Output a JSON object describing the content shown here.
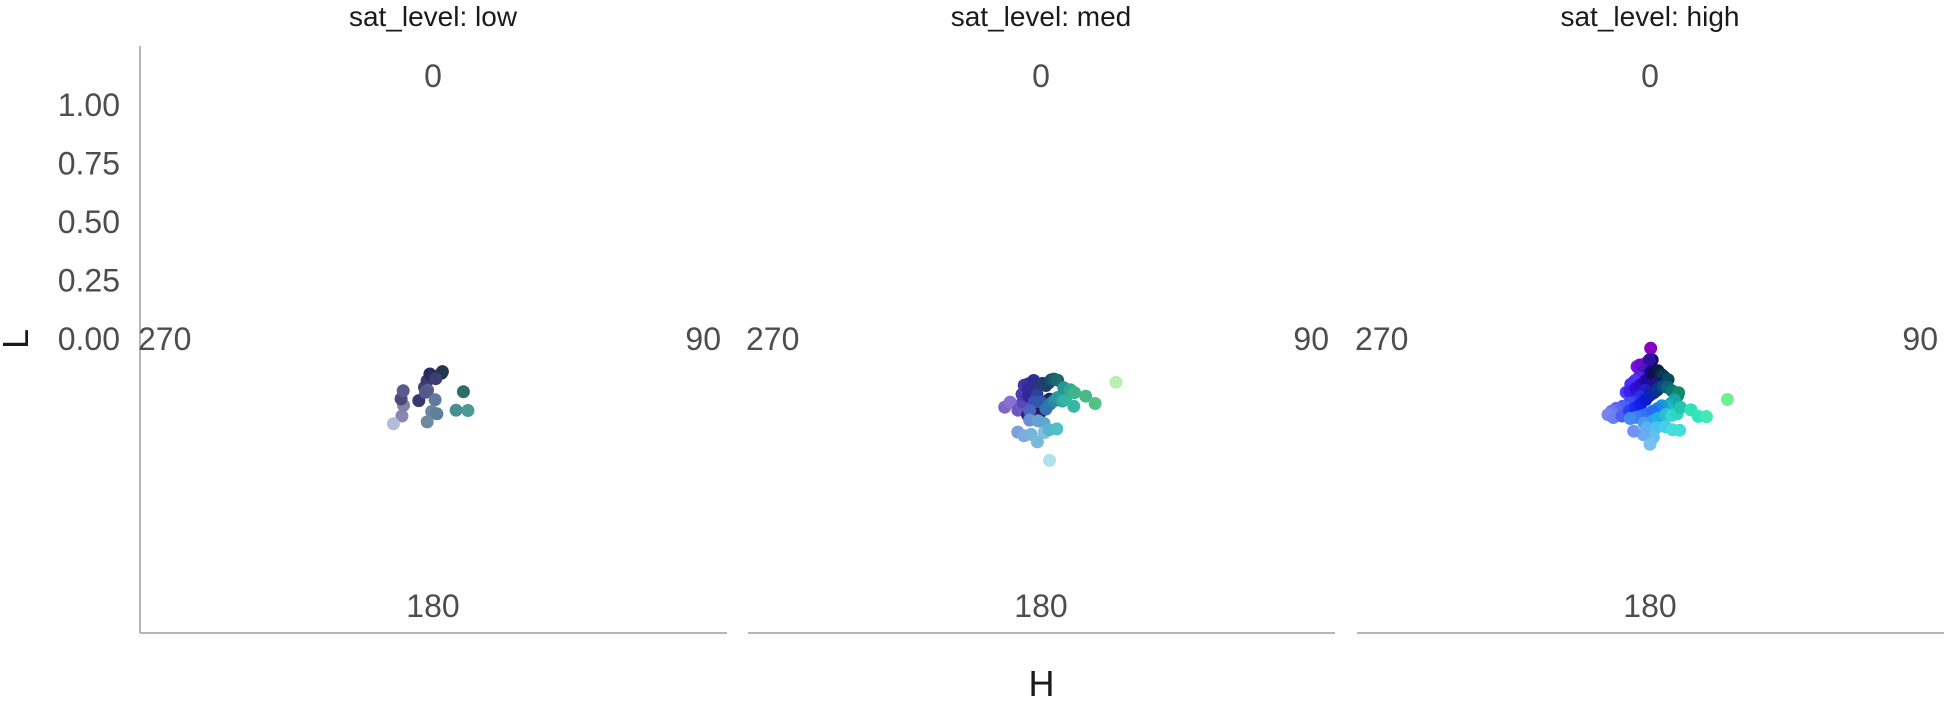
{
  "chart_data": {
    "type": "scatter",
    "coord": "polar",
    "facet_var": "sat_level",
    "x": {
      "label": "H",
      "range": [
        0,
        360
      ],
      "ticks": [
        0,
        90,
        180,
        270
      ]
    },
    "y": {
      "label": "L",
      "range": [
        0,
        1.25
      ],
      "ticks": [
        "0.00",
        "0.25",
        "0.50",
        "0.75",
        "1.00"
      ]
    },
    "grid": false,
    "panels": [
      {
        "label": "sat_level: low",
        "points": [
          {
            "h": 202,
            "l": 0.355,
            "color": "#8a86b4"
          },
          {
            "h": 204,
            "l": 0.31,
            "color": "#8480a8"
          },
          {
            "h": 208,
            "l": 0.29,
            "color": "#4a4a7a"
          },
          {
            "h": 210,
            "l": 0.255,
            "color": "#5a5a8c"
          },
          {
            "h": 193,
            "l": 0.27,
            "color": "#38366a"
          },
          {
            "h": 190,
            "l": 0.21,
            "color": "#44407a"
          },
          {
            "h": 188,
            "l": 0.18,
            "color": "#3a3a6e"
          },
          {
            "h": 185,
            "l": 0.15,
            "color": "#2c2c5c"
          },
          {
            "h": 166,
            "l": 0.15,
            "color": "#1e2a48"
          },
          {
            "h": 164,
            "l": 0.145,
            "color": "#26344e"
          },
          {
            "h": 176,
            "l": 0.17,
            "color": "#3c3e70"
          },
          {
            "h": 186,
            "l": 0.22,
            "color": "#5c6090"
          },
          {
            "h": 188,
            "l": 0.23,
            "color": "#56588a"
          },
          {
            "h": 178,
            "l": 0.26,
            "color": "#607a9c"
          },
          {
            "h": 181,
            "l": 0.31,
            "color": "#6a84a6"
          },
          {
            "h": 177,
            "l": 0.32,
            "color": "#5e7e9a"
          },
          {
            "h": 184,
            "l": 0.355,
            "color": "#6c8aa0"
          },
          {
            "h": 162,
            "l": 0.32,
            "color": "#4a8f90"
          },
          {
            "h": 154,
            "l": 0.34,
            "color": "#4a9a90"
          },
          {
            "h": 150,
            "l": 0.26,
            "color": "#2e6e68"
          },
          {
            "h": 205,
            "l": 0.4,
            "color": "#b4bcd8"
          }
        ]
      },
      {
        "label": "sat_level: med",
        "points": [
          {
            "h": 208,
            "l": 0.33,
            "color": "#7c68c8"
          },
          {
            "h": 206,
            "l": 0.3,
            "color": "#8a70d2"
          },
          {
            "h": 198,
            "l": 0.32,
            "color": "#6c58c0"
          },
          {
            "h": 190,
            "l": 0.33,
            "color": "#3a1e8c"
          },
          {
            "h": 188,
            "l": 0.29,
            "color": "#4a2ca2"
          },
          {
            "h": 183,
            "l": 0.31,
            "color": "#2a1670"
          },
          {
            "h": 180,
            "l": 0.31,
            "color": "#261a5c"
          },
          {
            "h": 176,
            "l": 0.27,
            "color": "#1c1c48"
          },
          {
            "h": 172,
            "l": 0.26,
            "color": "#22225a"
          },
          {
            "h": 196,
            "l": 0.28,
            "color": "#5a48b8"
          },
          {
            "h": 199,
            "l": 0.25,
            "color": "#4a3cae"
          },
          {
            "h": 200,
            "l": 0.21,
            "color": "#4638a4"
          },
          {
            "h": 196,
            "l": 0.2,
            "color": "#3c32a0"
          },
          {
            "h": 194,
            "l": 0.22,
            "color": "#3628a0"
          },
          {
            "h": 192,
            "l": 0.25,
            "color": "#30269a"
          },
          {
            "h": 190,
            "l": 0.18,
            "color": "#2c2c92"
          },
          {
            "h": 186,
            "l": 0.21,
            "color": "#302e90"
          },
          {
            "h": 182,
            "l": 0.2,
            "color": "#2a3280"
          },
          {
            "h": 178,
            "l": 0.19,
            "color": "#243c76"
          },
          {
            "h": 174,
            "l": 0.2,
            "color": "#203e70"
          },
          {
            "h": 170,
            "l": 0.19,
            "color": "#1c4068"
          },
          {
            "h": 166,
            "l": 0.18,
            "color": "#1e4a6e"
          },
          {
            "h": 162,
            "l": 0.18,
            "color": "#1a5a6a"
          },
          {
            "h": 158,
            "l": 0.19,
            "color": "#1a6a6e"
          },
          {
            "h": 184,
            "l": 0.24,
            "color": "#3040a0"
          },
          {
            "h": 186,
            "l": 0.27,
            "color": "#3a50b0"
          },
          {
            "h": 189,
            "l": 0.31,
            "color": "#4a64c0"
          },
          {
            "h": 180,
            "l": 0.27,
            "color": "#2e5aa8"
          },
          {
            "h": 176,
            "l": 0.3,
            "color": "#3870b8"
          },
          {
            "h": 172,
            "l": 0.28,
            "color": "#2a7aa8"
          },
          {
            "h": 168,
            "l": 0.27,
            "color": "#2a8aa8"
          },
          {
            "h": 164,
            "l": 0.26,
            "color": "#2a9a9c"
          },
          {
            "h": 161,
            "l": 0.28,
            "color": "#2ea8a0"
          },
          {
            "h": 158,
            "l": 0.28,
            "color": "#34b4a2"
          },
          {
            "h": 154,
            "l": 0.32,
            "color": "#38b8a4"
          },
          {
            "h": 155,
            "l": 0.23,
            "color": "#2a9490"
          },
          {
            "h": 150,
            "l": 0.25,
            "color": "#2eaa94"
          },
          {
            "h": 148,
            "l": 0.27,
            "color": "#3cb48c"
          },
          {
            "h": 142,
            "l": 0.31,
            "color": "#4cb888"
          },
          {
            "h": 140,
            "l": 0.36,
            "color": "#50c480"
          },
          {
            "h": 120,
            "l": 0.37,
            "color": "#b8eeb0"
          },
          {
            "h": 188,
            "l": 0.35,
            "color": "#6a90d4"
          },
          {
            "h": 182,
            "l": 0.35,
            "color": "#6aa0d6"
          },
          {
            "h": 178,
            "l": 0.36,
            "color": "#5aa8d0"
          },
          {
            "h": 194,
            "l": 0.41,
            "color": "#78a0da"
          },
          {
            "h": 190,
            "l": 0.42,
            "color": "#80aadc"
          },
          {
            "h": 186,
            "l": 0.41,
            "color": "#76b4dc"
          },
          {
            "h": 178,
            "l": 0.4,
            "color": "#7cc0dc"
          },
          {
            "h": 175,
            "l": 0.39,
            "color": "#5ab4d2"
          },
          {
            "h": 170,
            "l": 0.39,
            "color": "#4ec0c6"
          },
          {
            "h": 182,
            "l": 0.44,
            "color": "#7cb8dc"
          },
          {
            "h": 176,
            "l": 0.52,
            "color": "#b0e2ec"
          }
        ]
      },
      {
        "label": "sat_level: high",
        "points": [
          {
            "h": 193,
            "l": 0.11,
            "color": "#9a10c8"
          },
          {
            "h": 202,
            "l": 0.12,
            "color": "#8a1ae0"
          },
          {
            "h": 205,
            "l": 0.13,
            "color": "#7a10e0"
          },
          {
            "h": 197,
            "l": 0.13,
            "color": "#7012d0"
          },
          {
            "h": 199,
            "l": 0.12,
            "color": "#6a0ccc"
          },
          {
            "h": 176,
            "l": 0.04,
            "color": "#8a00c0"
          },
          {
            "h": 174,
            "l": 0.09,
            "color": "#1a0a70"
          },
          {
            "h": 182,
            "l": 0.09,
            "color": "#3010a0"
          },
          {
            "h": 190,
            "l": 0.14,
            "color": "#4c14c0"
          },
          {
            "h": 188,
            "l": 0.16,
            "color": "#3810b0"
          },
          {
            "h": 196,
            "l": 0.17,
            "color": "#5a20e0"
          },
          {
            "h": 200,
            "l": 0.19,
            "color": "#5a2ef0"
          },
          {
            "h": 203,
            "l": 0.21,
            "color": "#4a30f0"
          },
          {
            "h": 204,
            "l": 0.25,
            "color": "#5040f0"
          },
          {
            "h": 201,
            "l": 0.24,
            "color": "#3a20e8"
          },
          {
            "h": 196,
            "l": 0.22,
            "color": "#2a10d8"
          },
          {
            "h": 192,
            "l": 0.2,
            "color": "#2a0ec8"
          },
          {
            "h": 186,
            "l": 0.18,
            "color": "#2008b0"
          },
          {
            "h": 182,
            "l": 0.17,
            "color": "#1a08a0"
          },
          {
            "h": 178,
            "l": 0.14,
            "color": "#140880"
          },
          {
            "h": 174,
            "l": 0.16,
            "color": "#100a60"
          },
          {
            "h": 170,
            "l": 0.15,
            "color": "#0c1048"
          },
          {
            "h": 166,
            "l": 0.14,
            "color": "#081c40"
          },
          {
            "h": 162,
            "l": 0.16,
            "color": "#0a2a48"
          },
          {
            "h": 160,
            "l": 0.17,
            "color": "#0a3a58"
          },
          {
            "h": 156,
            "l": 0.19,
            "color": "#0a4a5c"
          },
          {
            "h": 172,
            "l": 0.19,
            "color": "#141a70"
          },
          {
            "h": 180,
            "l": 0.2,
            "color": "#1a1290"
          },
          {
            "h": 186,
            "l": 0.22,
            "color": "#1e20c0"
          },
          {
            "h": 190,
            "l": 0.25,
            "color": "#2a2ce0"
          },
          {
            "h": 194,
            "l": 0.28,
            "color": "#3040f0"
          },
          {
            "h": 198,
            "l": 0.29,
            "color": "#3c50f0"
          },
          {
            "h": 202,
            "l": 0.31,
            "color": "#4a5ef2"
          },
          {
            "h": 206,
            "l": 0.33,
            "color": "#5a68f2"
          },
          {
            "h": 208,
            "l": 0.35,
            "color": "#6a78f0"
          },
          {
            "h": 209,
            "l": 0.37,
            "color": "#7c84f0"
          },
          {
            "h": 205,
            "l": 0.37,
            "color": "#6a80f0"
          },
          {
            "h": 200,
            "l": 0.35,
            "color": "#4a60f0"
          },
          {
            "h": 196,
            "l": 0.32,
            "color": "#2a40f0"
          },
          {
            "h": 192,
            "l": 0.3,
            "color": "#1a2cf0"
          },
          {
            "h": 188,
            "l": 0.28,
            "color": "#1020e8"
          },
          {
            "h": 184,
            "l": 0.26,
            "color": "#0a1ad8"
          },
          {
            "h": 180,
            "l": 0.24,
            "color": "#0a20c0"
          },
          {
            "h": 176,
            "l": 0.23,
            "color": "#0a2aa8"
          },
          {
            "h": 172,
            "l": 0.22,
            "color": "#0a3090"
          },
          {
            "h": 168,
            "l": 0.21,
            "color": "#083a80"
          },
          {
            "h": 164,
            "l": 0.21,
            "color": "#0a4a7c"
          },
          {
            "h": 160,
            "l": 0.22,
            "color": "#0c6078"
          },
          {
            "h": 157,
            "l": 0.24,
            "color": "#107474"
          },
          {
            "h": 154,
            "l": 0.27,
            "color": "#149070"
          },
          {
            "h": 152,
            "l": 0.26,
            "color": "#0e8a6c"
          },
          {
            "h": 158,
            "l": 0.28,
            "color": "#1aa2a0"
          },
          {
            "h": 162,
            "l": 0.29,
            "color": "#18a8b4"
          },
          {
            "h": 166,
            "l": 0.3,
            "color": "#20b8c8"
          },
          {
            "h": 170,
            "l": 0.29,
            "color": "#1a9ad8"
          },
          {
            "h": 174,
            "l": 0.3,
            "color": "#1a84e8"
          },
          {
            "h": 178,
            "l": 0.31,
            "color": "#1a70f0"
          },
          {
            "h": 182,
            "l": 0.32,
            "color": "#2a6cf0"
          },
          {
            "h": 186,
            "l": 0.33,
            "color": "#3470f0"
          },
          {
            "h": 190,
            "l": 0.34,
            "color": "#3a7cf0"
          },
          {
            "h": 194,
            "l": 0.35,
            "color": "#4488f0"
          },
          {
            "h": 184,
            "l": 0.36,
            "color": "#4a9af0"
          },
          {
            "h": 178,
            "l": 0.35,
            "color": "#30a0f0"
          },
          {
            "h": 174,
            "l": 0.34,
            "color": "#22b0e8"
          },
          {
            "h": 168,
            "l": 0.33,
            "color": "#28c0d8"
          },
          {
            "h": 164,
            "l": 0.34,
            "color": "#3cd6d0"
          },
          {
            "h": 160,
            "l": 0.34,
            "color": "#2ad6c0"
          },
          {
            "h": 156,
            "l": 0.32,
            "color": "#22c4b0"
          },
          {
            "h": 150,
            "l": 0.35,
            "color": "#30e0b8"
          },
          {
            "h": 148,
            "l": 0.39,
            "color": "#30e4c0"
          },
          {
            "h": 144,
            "l": 0.41,
            "color": "#40eab0"
          },
          {
            "h": 128,
            "l": 0.42,
            "color": "#6ef090"
          },
          {
            "h": 182,
            "l": 0.38,
            "color": "#5ab0f0"
          },
          {
            "h": 176,
            "l": 0.38,
            "color": "#4cc0f0"
          },
          {
            "h": 170,
            "l": 0.38,
            "color": "#40d0e8"
          },
          {
            "h": 166,
            "l": 0.4,
            "color": "#48dce0"
          },
          {
            "h": 162,
            "l": 0.41,
            "color": "#40e0d8"
          },
          {
            "h": 178,
            "l": 0.42,
            "color": "#64c0f0"
          },
          {
            "h": 184,
            "l": 0.41,
            "color": "#6aaaf0"
          },
          {
            "h": 190,
            "l": 0.4,
            "color": "#7094f0"
          },
          {
            "h": 180,
            "l": 0.45,
            "color": "#78c0f0"
          }
        ]
      }
    ]
  }
}
